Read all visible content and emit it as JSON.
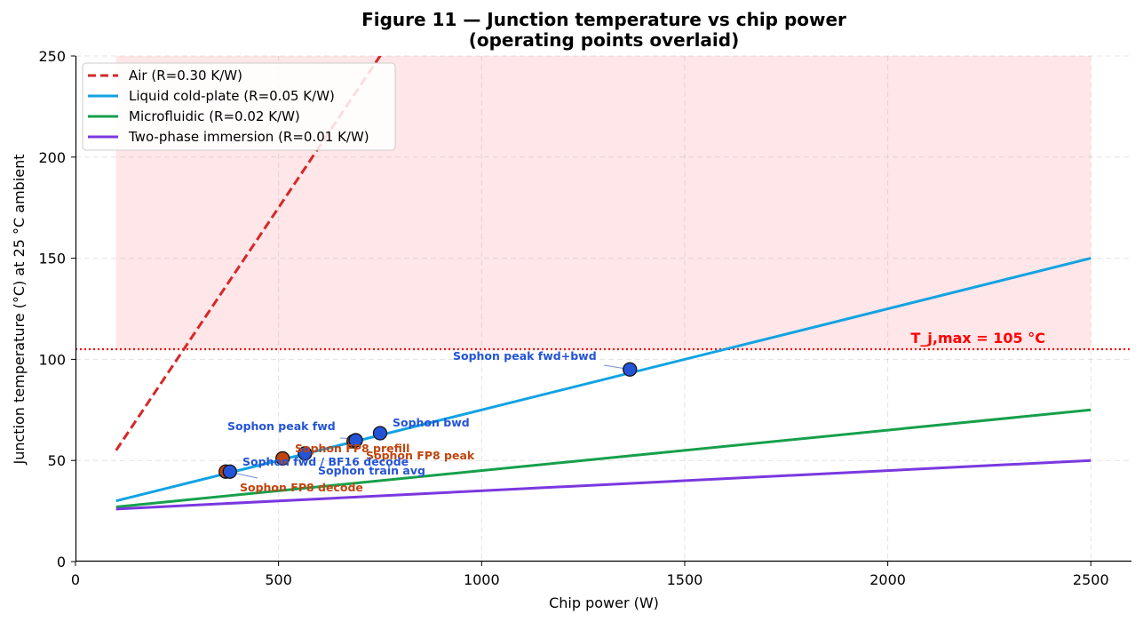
{
  "chart_data": {
    "type": "line",
    "title_line1": "Figure 11 — Junction temperature vs chip power",
    "title_line2": "(operating points overlaid)",
    "xlabel": "Chip power (W)",
    "ylabel": "Junction temperature (°C) at 25 °C ambient",
    "xlim": [
      0,
      2600
    ],
    "ylim": [
      0,
      250
    ],
    "xticks": [
      0,
      500,
      1000,
      1500,
      2000,
      2500
    ],
    "yticks": [
      0,
      50,
      100,
      150,
      200,
      250
    ],
    "grid": true,
    "legend_position": "upper-left",
    "ambient_c": 25,
    "unsafe_region": {
      "x_range": [
        100,
        2500
      ],
      "y_from": 105,
      "color": "#ffe6e8"
    },
    "tj_max": {
      "value": 105,
      "label": "T_j,max = 105 °C",
      "color": "#ff0000"
    },
    "series": [
      {
        "name": "Air (R=0.30 K/W)",
        "resistance": 0.3,
        "x": [
          100,
          2500
        ],
        "color": "#d62728",
        "style": "dashed"
      },
      {
        "name": "Liquid cold-plate (R=0.05 K/W)",
        "resistance": 0.05,
        "x": [
          100,
          2500
        ],
        "color": "#11a3e3",
        "style": "solid"
      },
      {
        "name": "Microfluidic (R=0.02 K/W)",
        "resistance": 0.02,
        "x": [
          100,
          2500
        ],
        "color": "#16a04b",
        "style": "solid"
      },
      {
        "name": "Two-phase immersion (R=0.01 K/W)",
        "resistance": 0.01,
        "x": [
          100,
          2500
        ],
        "color": "#7a38e0",
        "style": "solid"
      }
    ],
    "points": [
      {
        "x": 370,
        "y": 44.5,
        "color": "#c1440e"
      },
      {
        "x": 380,
        "y": 44.5,
        "color": "#2454d6"
      },
      {
        "x": 510,
        "y": 51,
        "color": "#c1440e"
      },
      {
        "x": 565,
        "y": 53.5,
        "color": "#2454d6"
      },
      {
        "x": 685,
        "y": 59.5,
        "color": "#c1440e"
      },
      {
        "x": 690,
        "y": 60,
        "color": "#2454d6"
      },
      {
        "x": 750,
        "y": 63.5,
        "color": "#2454d6"
      },
      {
        "x": 1365,
        "y": 95,
        "color": "#2454d6"
      }
    ],
    "annotations": [
      {
        "text": "Sophon peak fwd+bwd",
        "color": "#2454d6"
      },
      {
        "text": "Sophon peak fwd",
        "color": "#2454d6"
      },
      {
        "text": "Sophon bwd",
        "color": "#2454d6"
      },
      {
        "text": "Sophon FP8 prefill",
        "color": "#c1440e"
      },
      {
        "text": "Sophon FP8 peak",
        "color": "#c1440e"
      },
      {
        "text": "Sophon fwd / BF16 decode",
        "color": "#2454d6"
      },
      {
        "text": "Sophon train avg",
        "color": "#2454d6"
      },
      {
        "text": "Sophon FP8 decode",
        "color": "#c1440e"
      }
    ]
  }
}
